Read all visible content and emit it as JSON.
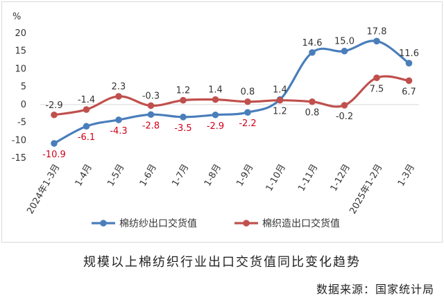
{
  "chart_data": {
    "type": "line",
    "title": "规模以上棉纺织行业出口交货值同比变化趋势",
    "source": "数据来源：国家统计局",
    "y_unit_label": "%",
    "ylim": [
      -15,
      20
    ],
    "yticks": [
      "20",
      "15",
      "10",
      "5",
      "0",
      "-5",
      "-10",
      "-15"
    ],
    "categories": [
      "2024年1-3月",
      "1-4月",
      "1-5月",
      "1-6月",
      "1-7月",
      "1-8月",
      "1-9月",
      "1-10月",
      "1-11月",
      "1-12月",
      "2025年1-2月",
      "1-3月"
    ],
    "legend_position": "bottom",
    "grid": false,
    "series": [
      {
        "name": "棉纺纱出口交货值",
        "color": "#4a7ebb",
        "values": [
          -10.9,
          -6.1,
          -4.3,
          -2.8,
          -3.5,
          -2.9,
          -2.2,
          1.4,
          14.6,
          15.0,
          17.8,
          11.6
        ],
        "labels": [
          "-10.9",
          "-6.1",
          "-4.3",
          "-2.8",
          "-3.5",
          "-2.9",
          "-2.2",
          "1.4",
          "14.6",
          "15.0",
          "17.8",
          "11.6"
        ],
        "label_color": "#d0001b"
      },
      {
        "name": "棉织造出口交货值",
        "color": "#c0504d",
        "values": [
          -2.9,
          -1.4,
          2.3,
          -0.3,
          1.2,
          1.4,
          0.8,
          1.2,
          0.8,
          -0.2,
          7.5,
          6.7
        ],
        "labels": [
          "-2.9",
          "-1.4",
          "2.3",
          "-0.3",
          "1.2",
          "1.4",
          "0.8",
          "1.2",
          "0.8",
          "-0.2",
          "7.5",
          "6.7"
        ],
        "label_color": "#333333"
      }
    ]
  }
}
